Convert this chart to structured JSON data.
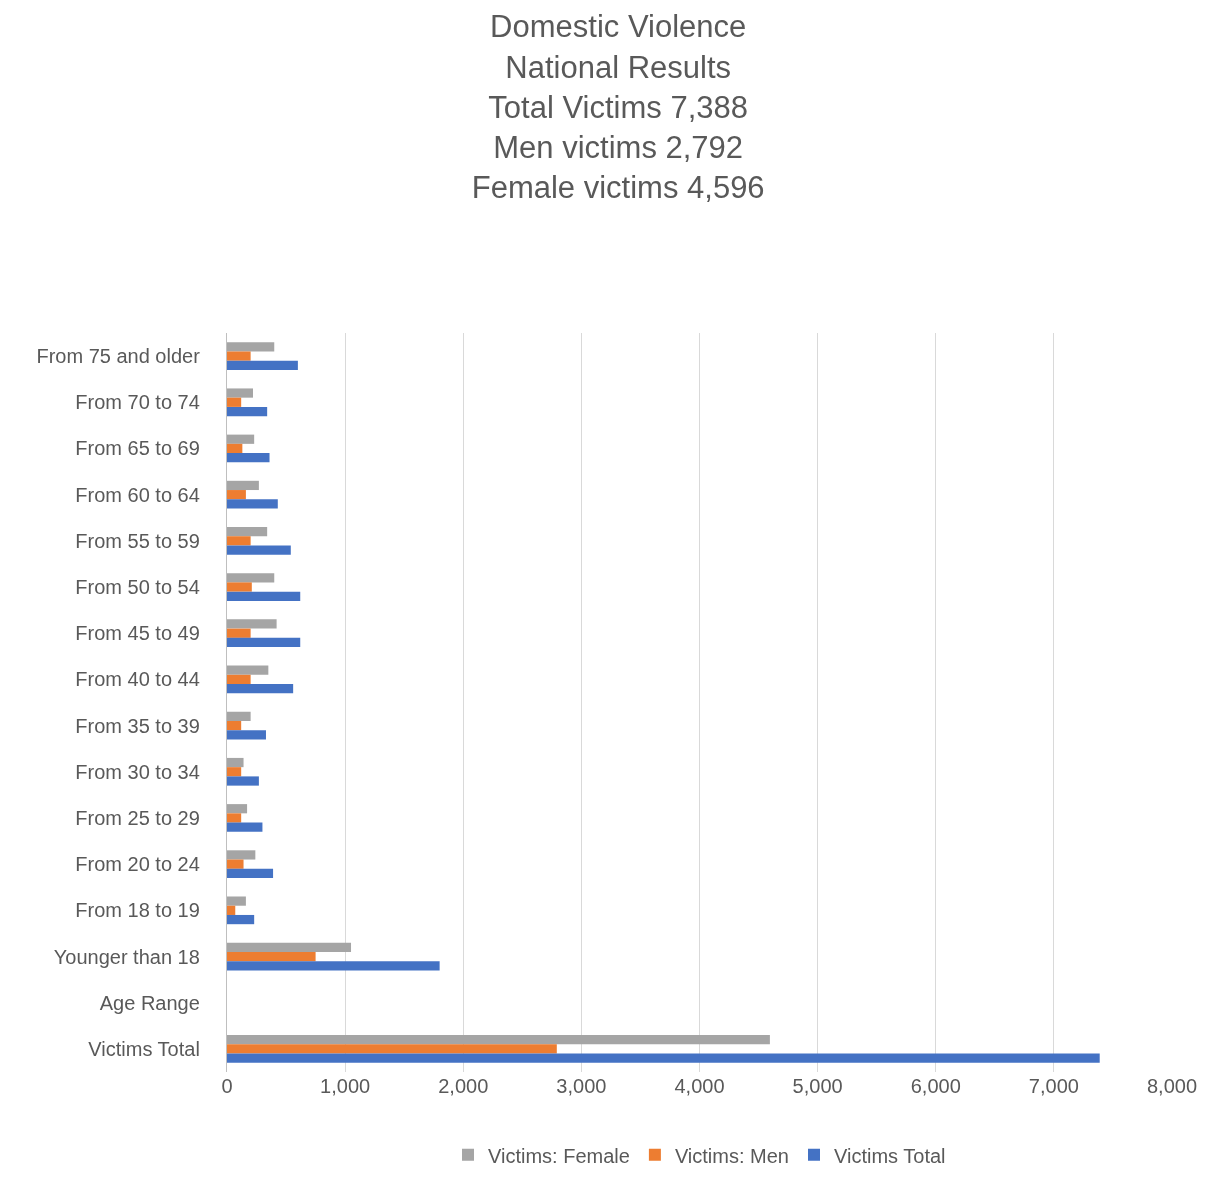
{
  "chart_data": {
    "type": "bar",
    "orientation": "horizontal",
    "title": "Domestic Violence\nNational Results\nTotal Victims 7,388\nMen victims 2,792\nFemale victims 4,596",
    "categories": [
      "From 75 and older",
      "From 70 to 74",
      "From 65 to 69",
      "From 60 to 64",
      "From 55 to 59",
      "From 50 to 54",
      "From 45 to 49",
      "From 40 to 44",
      "From 35 to 39",
      "From 30 to 34",
      "From 25 to 29",
      "From 20 to 24",
      "From 18 to 19",
      "Younger than 18",
      "Age Range",
      "Victims Total"
    ],
    "series": [
      {
        "name": "Victims: Female",
        "color": "#a5a5a5",
        "values": [
          400,
          220,
          230,
          270,
          340,
          400,
          420,
          350,
          200,
          140,
          170,
          240,
          160,
          1050,
          null,
          4596
        ]
      },
      {
        "name": "Victims: Men",
        "color": "#ed7d31",
        "values": [
          200,
          120,
          130,
          160,
          200,
          210,
          200,
          200,
          120,
          120,
          120,
          140,
          70,
          750,
          null,
          2792
        ]
      },
      {
        "name": "Victims Total",
        "color": "#4472c4",
        "values": [
          600,
          340,
          360,
          430,
          540,
          620,
          620,
          560,
          330,
          270,
          300,
          390,
          230,
          1800,
          null,
          7388
        ]
      }
    ],
    "xlim": [
      0,
      8000
    ],
    "xticks": [
      0,
      {
        "value": 1000,
        "label": "1,000"
      },
      {
        "value": 2000,
        "label": "2,000"
      },
      {
        "value": 3000,
        "label": "3,000"
      },
      {
        "value": 4000,
        "label": "4,000"
      },
      {
        "value": 5000,
        "label": "5,000"
      },
      {
        "value": 6000,
        "label": "6,000"
      },
      {
        "value": 7000,
        "label": "7,000"
      },
      {
        "value": 8000,
        "label": "8,000"
      }
    ],
    "grid": "x",
    "legend": "bottom"
  }
}
